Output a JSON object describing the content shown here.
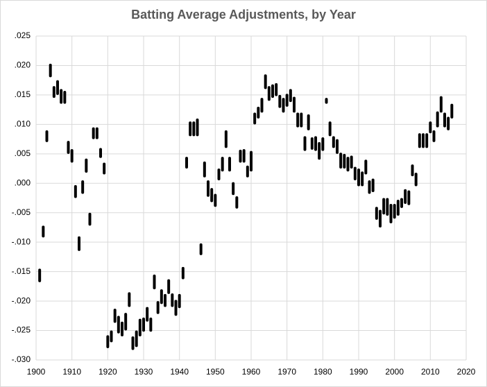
{
  "chart_data": {
    "type": "range",
    "title": "Batting Average Adjustments, by Year",
    "x": [
      1901,
      1902,
      1903,
      1904,
      1905,
      1906,
      1907,
      1908,
      1909,
      1910,
      1911,
      1912,
      1913,
      1914,
      1915,
      1916,
      1917,
      1918,
      1919,
      1920,
      1921,
      1922,
      1923,
      1924,
      1925,
      1926,
      1927,
      1928,
      1929,
      1930,
      1931,
      1932,
      1933,
      1934,
      1935,
      1936,
      1937,
      1938,
      1939,
      1940,
      1941,
      1942,
      1943,
      1944,
      1945,
      1946,
      1947,
      1948,
      1949,
      1950,
      1951,
      1952,
      1953,
      1954,
      1955,
      1956,
      1957,
      1958,
      1959,
      1960,
      1961,
      1962,
      1963,
      1964,
      1965,
      1966,
      1967,
      1968,
      1969,
      1970,
      1971,
      1972,
      1973,
      1974,
      1975,
      1976,
      1977,
      1978,
      1979,
      1980,
      1981,
      1982,
      1983,
      1984,
      1985,
      1986,
      1987,
      1988,
      1989,
      1990,
      1991,
      1992,
      1993,
      1994,
      1995,
      1996,
      1997,
      1998,
      1999,
      2000,
      2001,
      2002,
      2003,
      2004,
      2005,
      2006,
      2007,
      2008,
      2009,
      2010,
      2011,
      2012,
      2013,
      2014,
      2015,
      2016
    ],
    "lows": [
      -0.0168,
      -0.0092,
      0.007,
      0.018,
      0.0145,
      0.015,
      0.0135,
      0.0135,
      0.005,
      0.0035,
      -0.0025,
      -0.0115,
      -0.0018,
      0.0018,
      -0.0072,
      0.0075,
      0.0075,
      0.0043,
      0.0015,
      -0.028,
      -0.027,
      -0.0237,
      -0.0255,
      -0.026,
      -0.025,
      -0.021,
      -0.0283,
      -0.0278,
      -0.026,
      -0.0252,
      -0.0235,
      -0.0252,
      -0.018,
      -0.0222,
      -0.0205,
      -0.021,
      -0.0188,
      -0.021,
      -0.0225,
      -0.0212,
      -0.0163,
      0.0025,
      0.008,
      0.008,
      0.008,
      -0.0122,
      0.001,
      -0.0023,
      -0.0032,
      -0.004,
      0.0005,
      0.002,
      0.006,
      0.002,
      -0.002,
      -0.0043,
      0.0035,
      0.0035,
      0.001,
      0.002,
      0.01,
      0.011,
      0.012,
      0.016,
      0.014,
      0.0145,
      0.0148,
      0.0128,
      0.012,
      0.013,
      0.0138,
      0.012,
      0.0095,
      0.0095,
      0.0055,
      0.009,
      0.0057,
      0.0055,
      0.004,
      0.0055,
      0.0135,
      0.008,
      0.006,
      0.005,
      0.0025,
      0.0025,
      0.002,
      0.0025,
      0.0005,
      -0.0005,
      -0.0005,
      0.0015,
      -0.0018,
      -0.0015,
      -0.0062,
      -0.0075,
      -0.0053,
      -0.0055,
      -0.0068,
      -0.006,
      -0.0055,
      -0.0042,
      -0.0035,
      -0.0037,
      0.0012,
      -0.0005,
      0.006,
      0.006,
      0.006,
      0.0085,
      0.007,
      0.0095,
      0.012,
      0.0095,
      0.009,
      0.011
    ],
    "highs": [
      -0.0145,
      -0.0072,
      0.009,
      0.0203,
      0.0165,
      0.0175,
      0.016,
      0.0157,
      0.0072,
      0.0058,
      -0.0003,
      -0.009,
      0.0005,
      0.0042,
      -0.005,
      0.0095,
      0.0095,
      0.006,
      0.0035,
      -0.0258,
      -0.025,
      -0.0213,
      -0.0225,
      -0.0235,
      -0.022,
      -0.0185,
      -0.026,
      -0.025,
      -0.023,
      -0.0228,
      -0.021,
      -0.0228,
      -0.0155,
      -0.02,
      -0.018,
      -0.0188,
      -0.0163,
      -0.0187,
      -0.0198,
      -0.0188,
      -0.0142,
      0.0045,
      0.0105,
      0.0105,
      0.011,
      -0.0102,
      0.0037,
      0.0005,
      -0.0008,
      -0.0018,
      0.0025,
      0.0045,
      0.009,
      0.0045,
      0.0002,
      -0.0022,
      0.0057,
      0.0058,
      0.003,
      0.0055,
      0.012,
      0.013,
      0.0145,
      0.0185,
      0.0165,
      0.0168,
      0.017,
      0.015,
      0.0145,
      0.0152,
      0.016,
      0.0147,
      0.012,
      0.012,
      0.008,
      0.0117,
      0.0078,
      0.008,
      0.007,
      0.0078,
      0.0145,
      0.0105,
      0.008,
      0.0075,
      0.0052,
      0.005,
      0.0045,
      0.0047,
      0.0028,
      0.0025,
      0.002,
      0.004,
      0.0005,
      0.0008,
      -0.004,
      -0.0045,
      -0.0025,
      -0.0025,
      -0.0035,
      -0.0035,
      -0.0028,
      -0.0025,
      -0.001,
      -0.0012,
      0.0032,
      0.0018,
      0.0085,
      0.0085,
      0.0085,
      0.0105,
      0.009,
      0.0122,
      0.0148,
      0.012,
      0.0113,
      0.0135
    ],
    "color": "#000000",
    "xlim": [
      1900,
      2020
    ],
    "xticks": [
      1900,
      1910,
      1920,
      1930,
      1940,
      1950,
      1960,
      1970,
      1980,
      1990,
      2000,
      2010,
      2020
    ],
    "ylim": [
      -0.03,
      0.025
    ],
    "yticks": [
      {
        "value": 0.025,
        "label": ".025"
      },
      {
        "value": 0.02,
        "label": ".020"
      },
      {
        "value": 0.015,
        "label": ".015"
      },
      {
        "value": 0.01,
        "label": ".010"
      },
      {
        "value": 0.005,
        "label": ".005"
      },
      {
        "value": 0,
        "label": ".000"
      },
      {
        "value": -0.005,
        "label": "-.005"
      },
      {
        "value": -0.01,
        "label": "-.010"
      },
      {
        "value": -0.015,
        "label": "-.015"
      },
      {
        "value": -0.02,
        "label": "-.020"
      },
      {
        "value": -0.025,
        "label": "-.025"
      },
      {
        "value": -0.03,
        "label": "-.030"
      }
    ],
    "grid": true
  }
}
